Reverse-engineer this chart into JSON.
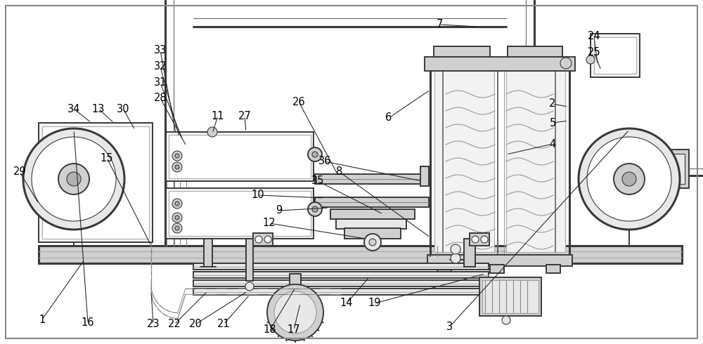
{
  "bg_color": "#ffffff",
  "fig_width": 10.0,
  "fig_height": 4.9,
  "dpi": 100,
  "line_color": "#3a3a3a",
  "text_color": "#000000",
  "font_size": 10.5,
  "border_color": "#999999"
}
